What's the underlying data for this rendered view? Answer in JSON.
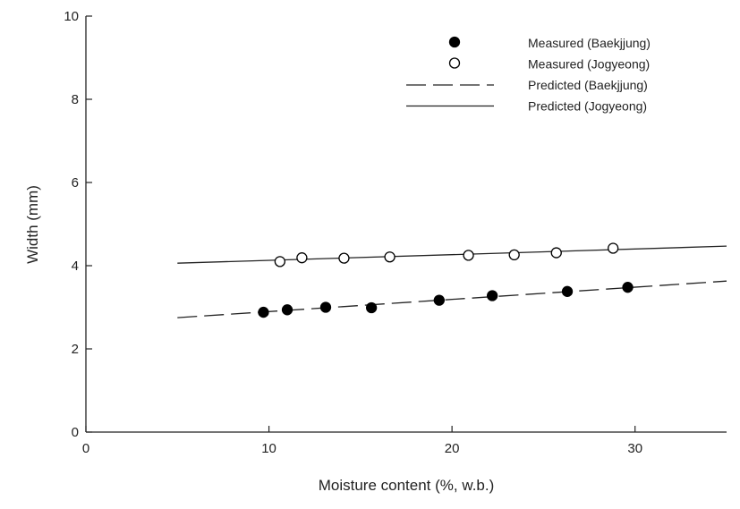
{
  "chart_data": {
    "type": "scatter",
    "title": "",
    "xlabel": "Moisture content (%, w.b.)",
    "ylabel": "Width (mm)",
    "xlim": [
      0,
      35
    ],
    "ylim": [
      0,
      10
    ],
    "xticks": [
      0,
      10,
      20,
      30
    ],
    "yticks": [
      0,
      2,
      4,
      6,
      8,
      10
    ],
    "grid": false,
    "legend_position": "top-right",
    "series": [
      {
        "name": "Measured (Baekjjung)",
        "kind": "scatter",
        "marker": "filled-circle",
        "color": "#000000",
        "points": [
          [
            9.7,
            2.88
          ],
          [
            11.0,
            2.94
          ],
          [
            13.1,
            3.0
          ],
          [
            15.6,
            2.99
          ],
          [
            19.3,
            3.17
          ],
          [
            22.2,
            3.28
          ],
          [
            26.3,
            3.38
          ],
          [
            29.6,
            3.48
          ]
        ]
      },
      {
        "name": "Measured (Jogyeong)",
        "kind": "scatter",
        "marker": "open-circle",
        "color": "#000000",
        "points": [
          [
            10.6,
            4.1
          ],
          [
            11.8,
            4.19
          ],
          [
            14.1,
            4.18
          ],
          [
            16.6,
            4.21
          ],
          [
            20.9,
            4.25
          ],
          [
            23.4,
            4.26
          ],
          [
            25.7,
            4.31
          ],
          [
            28.8,
            4.42
          ]
        ]
      },
      {
        "name": "Predicted (Baekjjung)",
        "kind": "line",
        "style": "dashed",
        "color": "#222222",
        "points": [
          [
            5,
            2.75
          ],
          [
            35,
            3.63
          ]
        ]
      },
      {
        "name": "Predicted (Jogyeong)",
        "kind": "line",
        "style": "solid",
        "color": "#222222",
        "points": [
          [
            5,
            4.06
          ],
          [
            35,
            4.47
          ]
        ]
      }
    ]
  }
}
